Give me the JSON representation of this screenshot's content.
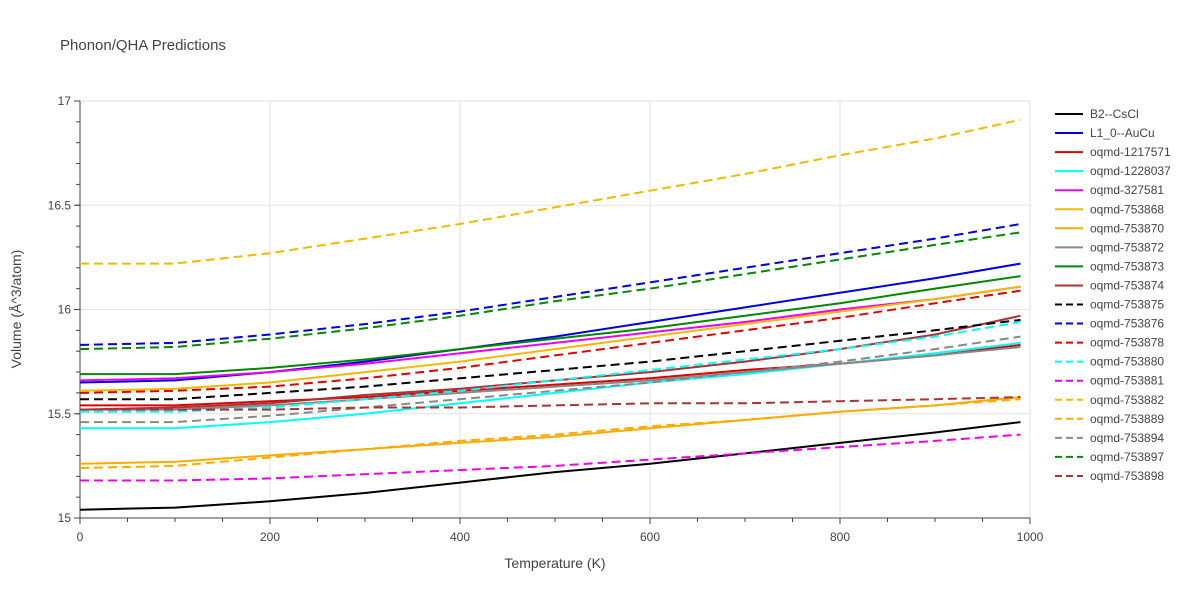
{
  "chart_data": {
    "type": "line",
    "title": "Phonon/QHA Predictions",
    "xlabel": "Temperature (K)",
    "ylabel": "Volume (Å^3/atom)",
    "xlim": [
      0,
      1000
    ],
    "ylim": [
      15.0,
      17.0
    ],
    "xticks": [
      0,
      200,
      400,
      600,
      800,
      1000
    ],
    "yticks": [
      15.0,
      15.5,
      16.0,
      16.5,
      17.0
    ],
    "ytick_labels": [
      "15",
      "15.5",
      "16",
      "16.5",
      "17"
    ],
    "grid": true,
    "legend_position": "right",
    "x": [
      0,
      100,
      200,
      300,
      400,
      500,
      600,
      700,
      800,
      900,
      990
    ],
    "series": [
      {
        "name": "B2--CsCl",
        "color": "#000000",
        "dash": "solid",
        "values": [
          15.04,
          15.05,
          15.08,
          15.12,
          15.17,
          15.22,
          15.26,
          15.31,
          15.36,
          15.41,
          15.46
        ]
      },
      {
        "name": "L1_0--AuCu",
        "color": "#0000dd",
        "dash": "solid",
        "values": [
          15.65,
          15.66,
          15.7,
          15.75,
          15.81,
          15.87,
          15.94,
          16.01,
          16.08,
          16.15,
          16.22
        ]
      },
      {
        "name": "oqmd-1217571",
        "color": "#dd0000",
        "dash": "solid",
        "values": [
          15.54,
          15.54,
          15.56,
          15.58,
          15.61,
          15.64,
          15.67,
          15.71,
          15.74,
          15.78,
          15.83
        ]
      },
      {
        "name": "oqmd-1228037",
        "color": "#00ffff",
        "dash": "solid",
        "values": [
          15.43,
          15.43,
          15.46,
          15.5,
          15.55,
          15.6,
          15.65,
          15.69,
          15.74,
          15.79,
          15.84
        ]
      },
      {
        "name": "oqmd-327581",
        "color": "#ee00ee",
        "dash": "solid",
        "values": [
          15.66,
          15.67,
          15.7,
          15.74,
          15.79,
          15.84,
          15.89,
          15.94,
          16.0,
          16.05,
          16.11
        ]
      },
      {
        "name": "oqmd-753868",
        "color": "#eebb00",
        "dash": "solid",
        "values": [
          15.61,
          15.62,
          15.65,
          15.7,
          15.75,
          15.81,
          15.87,
          15.93,
          15.99,
          16.05,
          16.11
        ]
      },
      {
        "name": "oqmd-753870",
        "color": "#ffaa00",
        "dash": "solid",
        "values": [
          15.26,
          15.27,
          15.3,
          15.33,
          15.36,
          15.39,
          15.43,
          15.47,
          15.51,
          15.54,
          15.58
        ]
      },
      {
        "name": "oqmd-753872",
        "color": "#888888",
        "dash": "solid",
        "values": [
          15.52,
          15.52,
          15.54,
          15.57,
          15.6,
          15.63,
          15.66,
          15.7,
          15.74,
          15.78,
          15.82
        ]
      },
      {
        "name": "oqmd-753873",
        "color": "#008800",
        "dash": "solid",
        "values": [
          15.69,
          15.69,
          15.72,
          15.76,
          15.81,
          15.86,
          15.91,
          15.97,
          16.03,
          16.1,
          16.16
        ]
      },
      {
        "name": "oqmd-753874",
        "color": "#aa3333",
        "dash": "solid",
        "values": [
          15.52,
          15.53,
          15.55,
          15.59,
          15.62,
          15.66,
          15.7,
          15.75,
          15.81,
          15.88,
          15.97
        ]
      },
      {
        "name": "oqmd-753875",
        "color": "#000000",
        "dash": "dash",
        "values": [
          15.57,
          15.57,
          15.6,
          15.63,
          15.67,
          15.71,
          15.75,
          15.8,
          15.85,
          15.9,
          15.95
        ]
      },
      {
        "name": "oqmd-753876",
        "color": "#0000dd",
        "dash": "dash",
        "values": [
          15.83,
          15.84,
          15.88,
          15.93,
          15.99,
          16.06,
          16.13,
          16.2,
          16.27,
          16.34,
          16.41
        ]
      },
      {
        "name": "oqmd-753878",
        "color": "#dd0000",
        "dash": "dash",
        "values": [
          15.6,
          15.61,
          15.63,
          15.67,
          15.72,
          15.78,
          15.84,
          15.9,
          15.96,
          16.03,
          16.09
        ]
      },
      {
        "name": "oqmd-753880",
        "color": "#00ffff",
        "dash": "dash",
        "values": [
          15.51,
          15.51,
          15.53,
          15.57,
          15.61,
          15.66,
          15.71,
          15.76,
          15.81,
          15.87,
          15.94
        ]
      },
      {
        "name": "oqmd-753881",
        "color": "#ee00ee",
        "dash": "dash",
        "values": [
          15.18,
          15.18,
          15.19,
          15.21,
          15.23,
          15.25,
          15.28,
          15.31,
          15.34,
          15.37,
          15.4
        ]
      },
      {
        "name": "oqmd-753882",
        "color": "#eebb00",
        "dash": "dash",
        "values": [
          16.22,
          16.22,
          16.27,
          16.34,
          16.41,
          16.49,
          16.57,
          16.65,
          16.74,
          16.82,
          16.91
        ]
      },
      {
        "name": "oqmd-753889",
        "color": "#ffaa00",
        "dash": "dash",
        "values": [
          15.24,
          15.25,
          15.29,
          15.33,
          15.37,
          15.4,
          15.44,
          15.47,
          15.51,
          15.54,
          15.57
        ]
      },
      {
        "name": "oqmd-753894",
        "color": "#888888",
        "dash": "dash",
        "values": [
          15.46,
          15.46,
          15.49,
          15.53,
          15.57,
          15.61,
          15.65,
          15.7,
          15.75,
          15.81,
          15.87
        ]
      },
      {
        "name": "oqmd-753897",
        "color": "#008800",
        "dash": "dash",
        "values": [
          15.81,
          15.82,
          15.86,
          15.91,
          15.97,
          16.04,
          16.1,
          16.17,
          16.24,
          16.31,
          16.37
        ]
      },
      {
        "name": "oqmd-753898",
        "color": "#aa3333",
        "dash": "dash",
        "values": [
          15.52,
          15.52,
          15.52,
          15.53,
          15.53,
          15.54,
          15.55,
          15.55,
          15.56,
          15.57,
          15.58
        ]
      }
    ]
  }
}
